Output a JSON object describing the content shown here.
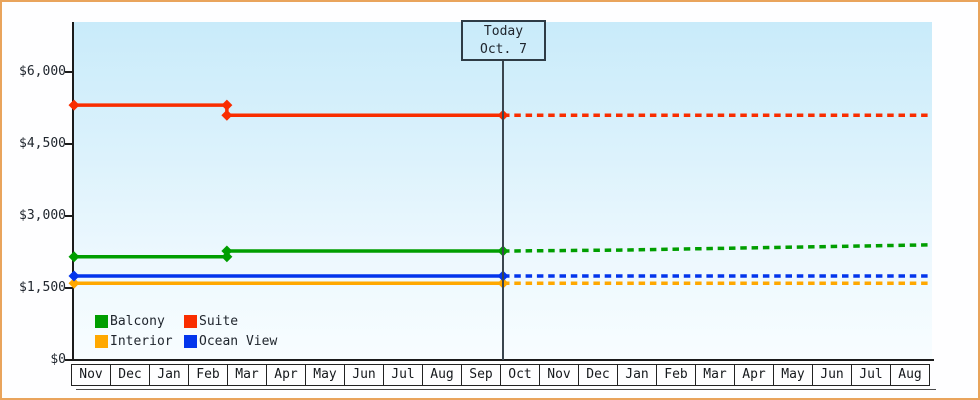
{
  "window": {
    "border_color": "#E9A45C",
    "background": "#FEFEFF"
  },
  "chart_data": {
    "type": "line",
    "title": "",
    "xlabel": "",
    "ylabel": "",
    "x_months": [
      "Nov",
      "Dec",
      "Jan",
      "Feb",
      "Mar",
      "Apr",
      "May",
      "Jun",
      "Jul",
      "Aug",
      "Sep",
      "Oct",
      "Nov",
      "Dec",
      "Jan",
      "Feb",
      "Mar",
      "Apr",
      "May",
      "Jun",
      "Jul",
      "Aug"
    ],
    "today_index": 11,
    "today_label": {
      "line1": "Today",
      "line2": "Oct. 7"
    },
    "y_ticks": [
      {
        "label": "$0",
        "value": 0
      },
      {
        "label": "$1,500",
        "value": 1500
      },
      {
        "label": "$3,000",
        "value": 3000
      },
      {
        "label": "$4,500",
        "value": 4500
      },
      {
        "label": "$6,000",
        "value": 6000
      }
    ],
    "ylim": [
      0,
      7040
    ],
    "grid": false,
    "legend_position": "bottom-left-inside",
    "series": [
      {
        "name": "Interior",
        "color": "#FFA800",
        "solid": [
          [
            0,
            1600
          ],
          [
            11,
            1600
          ]
        ],
        "dashed": [
          [
            11,
            1600
          ],
          [
            22,
            1600
          ]
        ],
        "markers": [
          [
            0,
            1600
          ],
          [
            11,
            1600
          ]
        ]
      },
      {
        "name": "Ocean View",
        "color": "#0335EC",
        "solid": [
          [
            0,
            1750
          ],
          [
            11,
            1750
          ]
        ],
        "dashed": [
          [
            11,
            1750
          ],
          [
            22,
            1750
          ]
        ],
        "markers": [
          [
            0,
            1750
          ],
          [
            11,
            1750
          ]
        ]
      },
      {
        "name": "Balcony",
        "color": "#009E00",
        "solid": [
          [
            0,
            2150
          ],
          [
            3.92,
            2150
          ],
          [
            3.92,
            2270
          ],
          [
            11,
            2270
          ]
        ],
        "dashed": [
          [
            11,
            2270
          ],
          [
            14,
            2290
          ],
          [
            22,
            2400
          ]
        ],
        "markers": [
          [
            0,
            2150
          ],
          [
            3.92,
            2150
          ],
          [
            3.92,
            2270
          ],
          [
            11,
            2270
          ]
        ]
      },
      {
        "name": "Suite",
        "color": "#F92D00",
        "solid": [
          [
            0,
            5310
          ],
          [
            3.92,
            5310
          ],
          [
            3.92,
            5100
          ],
          [
            11,
            5100
          ]
        ],
        "dashed": [
          [
            11,
            5100
          ],
          [
            22,
            5100
          ]
        ],
        "markers": [
          [
            0,
            5310
          ],
          [
            3.92,
            5310
          ],
          [
            3.92,
            5100
          ],
          [
            11,
            5100
          ]
        ]
      }
    ]
  },
  "legend": {
    "items": [
      {
        "label": "Balcony",
        "color": "#009E00"
      },
      {
        "label": "Suite",
        "color": "#F92D00"
      },
      {
        "label": "Interior",
        "color": "#FFA800"
      },
      {
        "label": "Ocean View",
        "color": "#0335EC"
      }
    ]
  }
}
